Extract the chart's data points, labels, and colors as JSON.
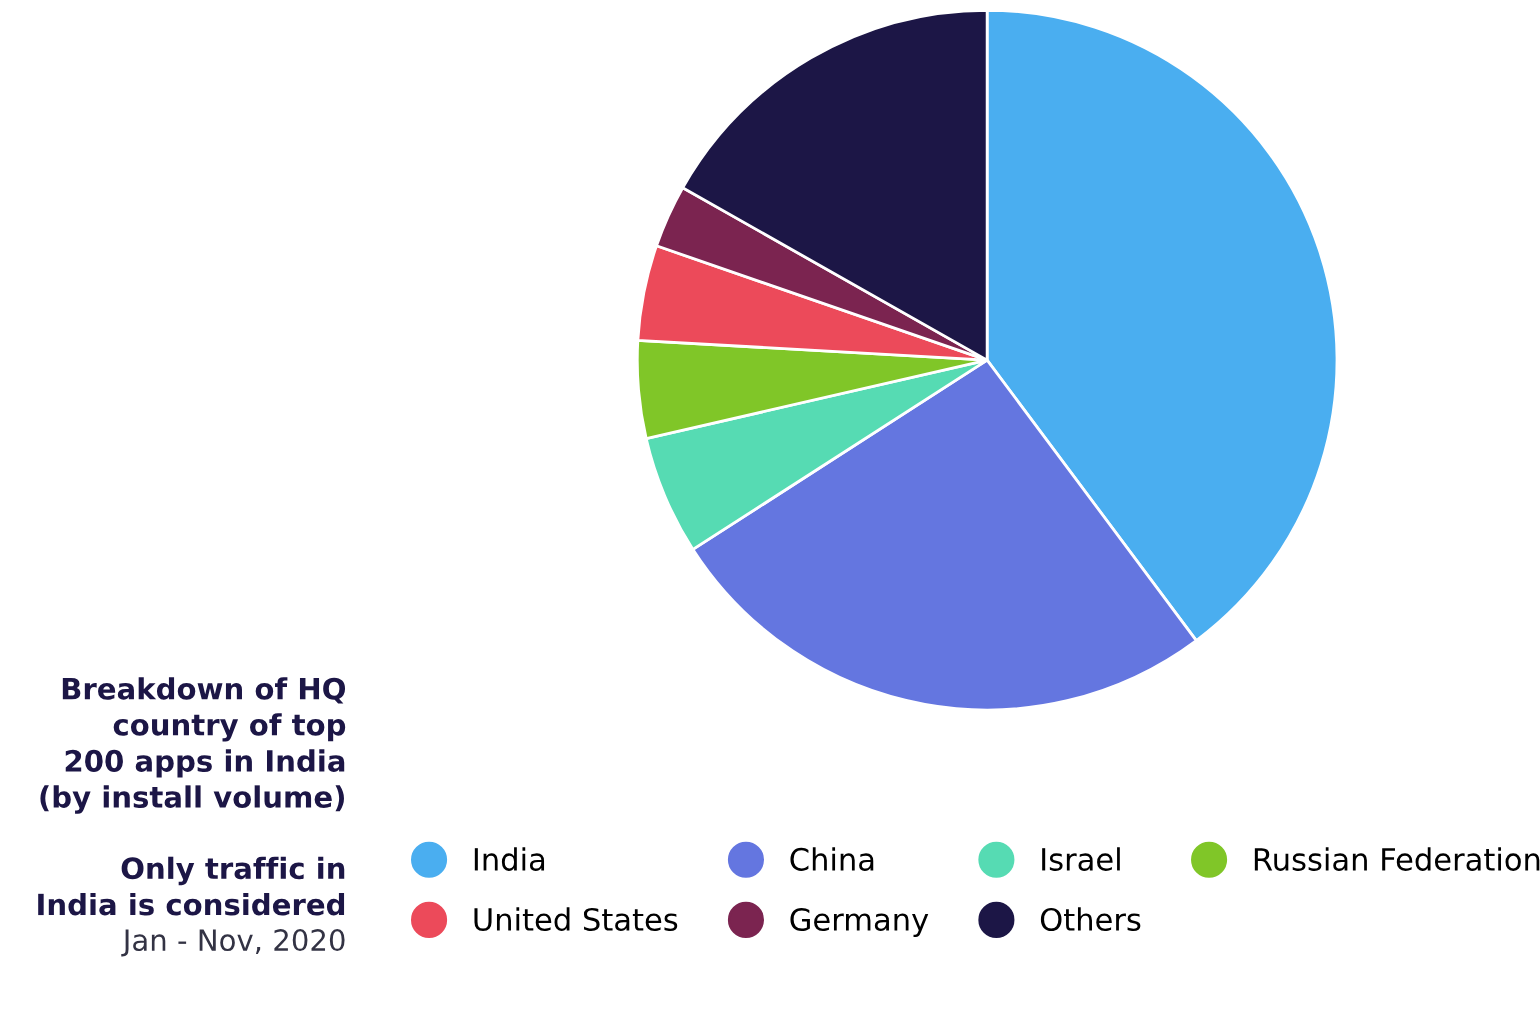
{
  "chart_data": {
    "type": "pie",
    "title": "Breakdown of HQ\ncountry of top\n200 apps in India\n(by install volume)",
    "subtitle": "Only traffic in\nIndia is considered",
    "annotations": [
      "Jan - Nov, 2020"
    ],
    "categories": [
      "India",
      "China",
      "Israel",
      "Russian Federation",
      "United States",
      "Germany",
      "Others"
    ],
    "values": [
      39.8,
      26.1,
      5.5,
      4.5,
      4.4,
      2.9,
      16.8
    ],
    "colors": [
      "#4aaef0",
      "#6476e0",
      "#56dbb3",
      "#80c628",
      "#ec4a5a",
      "#7b2450",
      "#1c1646"
    ],
    "legend": "bottom"
  }
}
